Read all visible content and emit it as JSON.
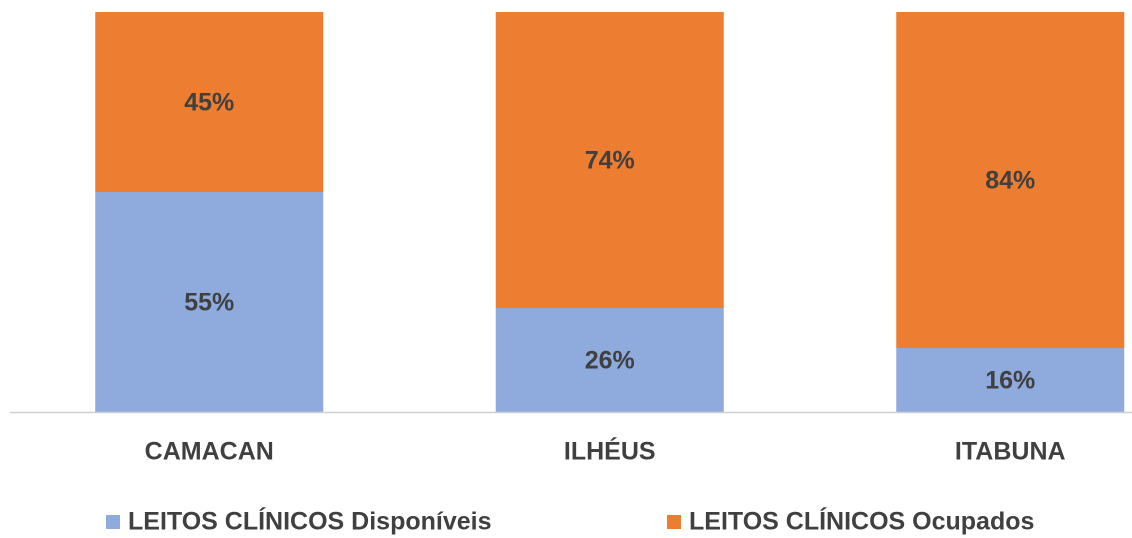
{
  "chart_data": {
    "type": "stacked_bar",
    "categories": [
      "CAMACAN",
      "ILHÉUS",
      "ITABUNA"
    ],
    "series": [
      {
        "name": "LEITOS CLÍNICOS Disponíveis",
        "color": "#8faadc",
        "values": [
          55,
          26,
          16
        ],
        "value_labels": [
          "55%",
          "26%",
          "16%"
        ]
      },
      {
        "name": "LEITOS CLÍNICOS Ocupados",
        "color": "#ed7d31",
        "values": [
          45,
          74,
          84
        ],
        "value_labels": [
          "45%",
          "74%",
          "84%"
        ]
      }
    ],
    "ylim": [
      0,
      100
    ]
  }
}
